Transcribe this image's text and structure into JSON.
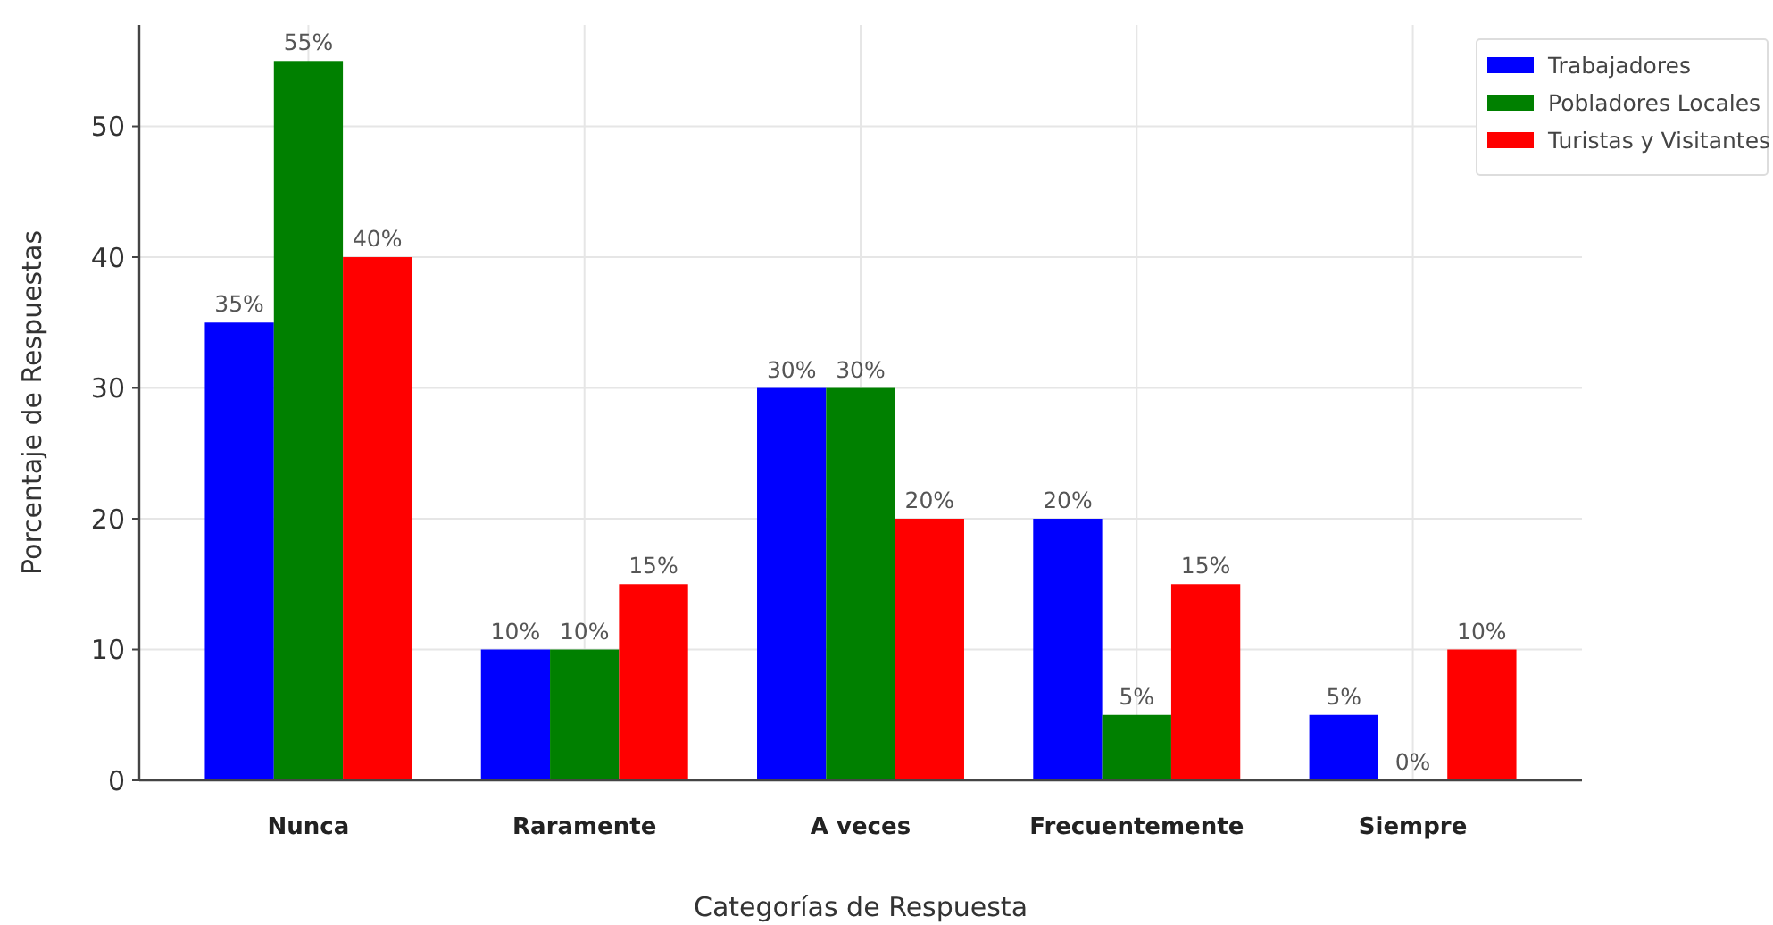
{
  "chart_data": {
    "type": "bar",
    "xlabel": "Categorías de Respuesta",
    "ylabel": "Porcentaje de Respuestas",
    "categories": [
      "Nunca",
      "Raramente",
      "A veces",
      "Frecuentemente",
      "Siempre"
    ],
    "series": [
      {
        "name": "Trabajadores",
        "color": "#0000ff",
        "values": [
          35,
          10,
          30,
          20,
          5
        ],
        "value_labels": [
          "35%",
          "10%",
          "30%",
          "20%",
          "5%"
        ]
      },
      {
        "name": "Pobladores Locales",
        "color": "#008000",
        "values": [
          55,
          10,
          30,
          5,
          0
        ],
        "value_labels": [
          "55%",
          "10%",
          "30%",
          "5%",
          "0%"
        ]
      },
      {
        "name": "Turistas y Visitantes",
        "color": "#ff0000",
        "values": [
          40,
          15,
          20,
          15,
          10
        ],
        "value_labels": [
          "40%",
          "15%",
          "20%",
          "15%",
          "10%"
        ]
      }
    ],
    "ylim": [
      0,
      57.75
    ],
    "yticks": [
      0,
      10,
      20,
      30,
      40,
      50
    ],
    "grid": true,
    "legend": "top right"
  }
}
